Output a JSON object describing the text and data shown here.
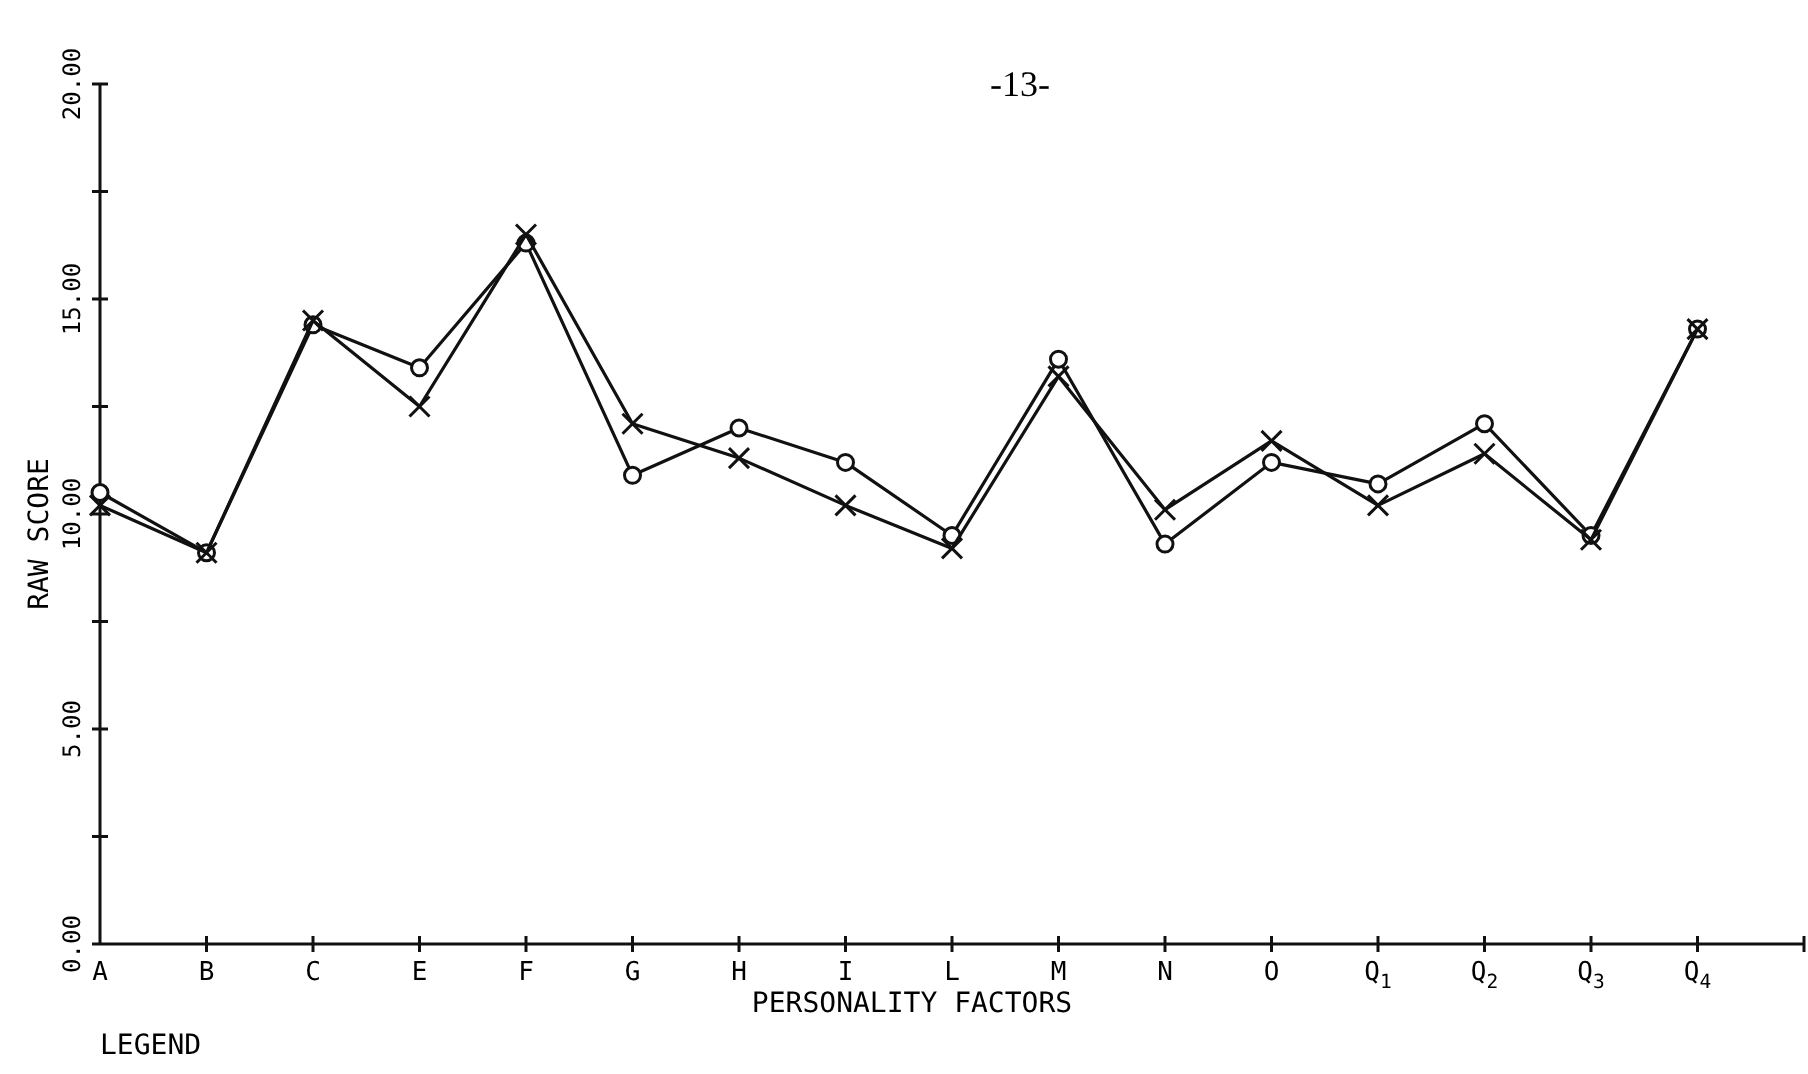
{
  "chart_data": {
    "type": "line",
    "xlabel": "PERSONALITY FACTORS",
    "ylabel": "RAW SCORE",
    "annotations": [
      "-13-",
      "LEGEND"
    ],
    "categories": [
      "A",
      "B",
      "C",
      "E",
      "F",
      "G",
      "H",
      "I",
      "L",
      "M",
      "N",
      "O",
      "Q$_{1}$",
      "Q$_{2}$",
      "Q$_{3}$",
      "Q$_{4}$"
    ],
    "series": [
      {
        "color": "#111111",
        "marker": "circle",
        "values": [
          10.5,
          9.1,
          14.4,
          13.4,
          16.3,
          10.9,
          12.0,
          11.2,
          9.5,
          13.6,
          9.3,
          11.2,
          10.7,
          12.1,
          9.5,
          14.3
        ]
      },
      {
        "color": "#111111",
        "marker": "cross",
        "values": [
          10.2,
          9.1,
          14.5,
          12.5,
          16.5,
          12.1,
          11.3,
          10.2,
          9.2,
          13.2,
          10.1,
          11.7,
          10.2,
          11.4,
          9.4,
          14.3
        ]
      }
    ],
    "ylim": [
      0,
      20
    ],
    "yticks": [
      {
        "value": 0,
        "label": "0.00"
      },
      {
        "value": 2.5,
        "label": null
      },
      {
        "value": 5,
        "label": "5.00"
      },
      {
        "value": 7.5,
        "label": null
      },
      {
        "value": 10,
        "label": "10.00"
      },
      {
        "value": 12.5,
        "label": null
      },
      {
        "value": 15,
        "label": "15.00"
      },
      {
        "value": 17.5,
        "label": null
      },
      {
        "value": 20,
        "label": "20.00"
      }
    ],
    "grid": false,
    "line_style": "solid"
  }
}
